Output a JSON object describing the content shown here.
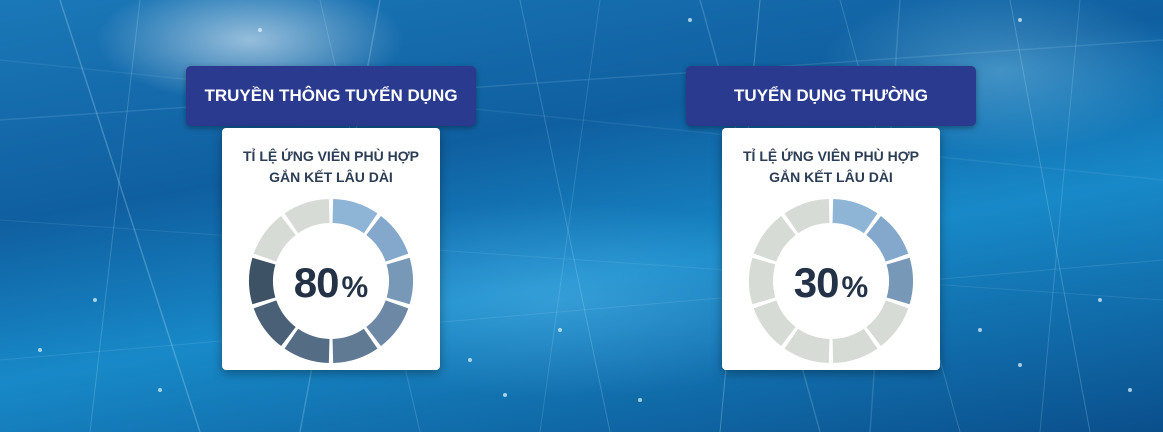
{
  "chart_data": [
    {
      "type": "pie",
      "title": "TRUYỀN THÔNG TUYỂN DỤNG",
      "subtitle_lines": [
        "TỈ LỆ ỨNG VIÊN PHÙ HỢP",
        "GẮN KẾT LÂU DÀI"
      ],
      "value": 80,
      "value_label": "80",
      "unit": "%",
      "segments_total": 10,
      "segments_filled": 8
    },
    {
      "type": "pie",
      "title": "TUYỂN DỤNG THƯỜNG",
      "subtitle_lines": [
        "TỈ LỆ ỨNG VIÊN PHÙ HỢP",
        "GẮN KẾT LÂU DÀI"
      ],
      "value": 30,
      "value_label": "30",
      "unit": "%",
      "segments_total": 10,
      "segments_filled": 3
    }
  ],
  "colors": {
    "filled_segments": [
      "#8eb4d6",
      "#83a8cb",
      "#7898b8",
      "#6c88a5",
      "#607a94",
      "#546d85",
      "#4a6076",
      "#3e5266"
    ],
    "empty_segment": "#d7dbd5",
    "header_bg": "#2a3a8f",
    "text_dark": "#233246"
  }
}
